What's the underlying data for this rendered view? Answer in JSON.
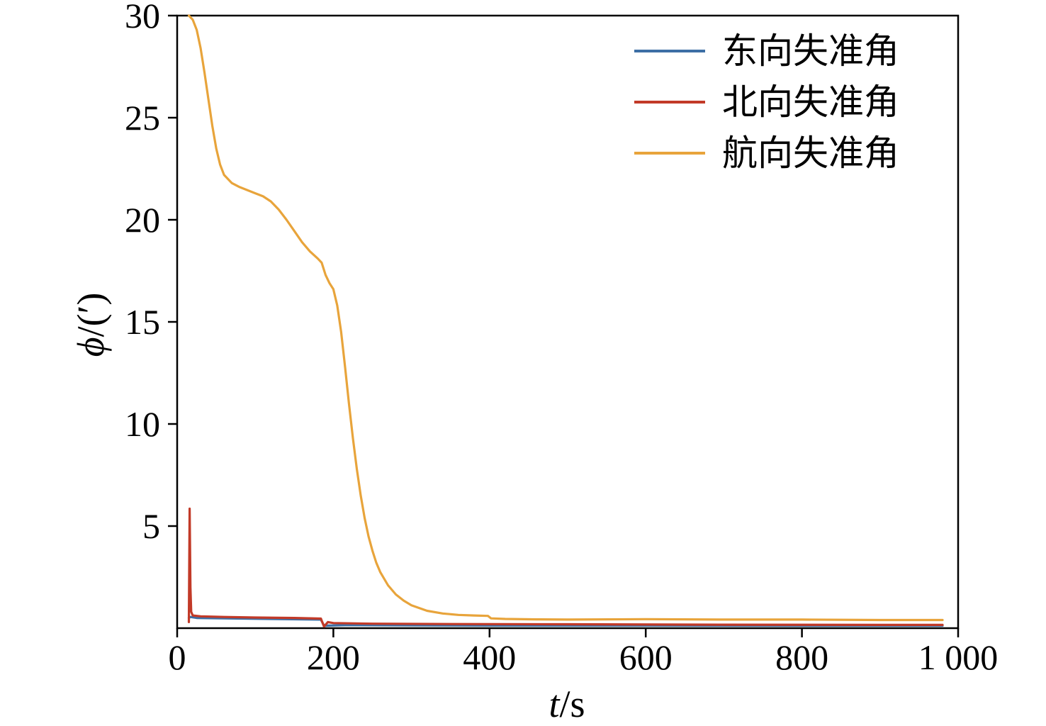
{
  "chart_data": {
    "type": "line",
    "title": "",
    "xlabel_var": "t",
    "xlabel_unit": "/s",
    "ylabel_var": "ϕ",
    "ylabel_unit": "/(′)",
    "xlim": [
      0,
      1000
    ],
    "ylim": [
      0,
      30
    ],
    "grid": false,
    "legend_position": "top-right",
    "x_ticks": {
      "values": [
        0,
        200,
        400,
        600,
        800,
        1000
      ],
      "labels": [
        "0",
        "200",
        "400",
        "600",
        "800",
        "1 000"
      ]
    },
    "y_ticks": {
      "values": [
        5,
        10,
        15,
        20,
        25,
        30
      ],
      "labels": [
        "5",
        "10",
        "15",
        "20",
        "25",
        "30"
      ]
    },
    "axis_color": "#000000",
    "series": [
      {
        "name": "东向失准角",
        "color": "#3d6fa5",
        "points": [
          [
            15,
            0.5
          ],
          [
            17,
            0.55
          ],
          [
            25,
            0.5
          ],
          [
            60,
            0.48
          ],
          [
            120,
            0.45
          ],
          [
            184,
            0.42
          ],
          [
            188,
            0.12
          ],
          [
            220,
            0.15
          ],
          [
            300,
            0.14
          ],
          [
            400,
            0.13
          ],
          [
            600,
            0.13
          ],
          [
            800,
            0.12
          ],
          [
            980,
            0.12
          ]
        ]
      },
      {
        "name": "北向失准角",
        "color": "#c23a28",
        "points": [
          [
            15,
            0.3
          ],
          [
            16,
            5.85
          ],
          [
            17,
            2.0
          ],
          [
            18,
            0.8
          ],
          [
            20,
            0.62
          ],
          [
            30,
            0.58
          ],
          [
            60,
            0.55
          ],
          [
            100,
            0.52
          ],
          [
            150,
            0.5
          ],
          [
            184,
            0.47
          ],
          [
            188,
            0.08
          ],
          [
            193,
            0.3
          ],
          [
            200,
            0.25
          ],
          [
            250,
            0.22
          ],
          [
            350,
            0.2
          ],
          [
            500,
            0.19
          ],
          [
            700,
            0.17
          ],
          [
            900,
            0.16
          ],
          [
            980,
            0.16
          ]
        ]
      },
      {
        "name": "航向失准角",
        "color": "#e8a43b",
        "points": [
          [
            15,
            30
          ],
          [
            20,
            29.8
          ],
          [
            25,
            29.3
          ],
          [
            30,
            28.4
          ],
          [
            35,
            27.2
          ],
          [
            40,
            25.9
          ],
          [
            45,
            24.6
          ],
          [
            50,
            23.5
          ],
          [
            55,
            22.7
          ],
          [
            60,
            22.2
          ],
          [
            70,
            21.8
          ],
          [
            80,
            21.6
          ],
          [
            90,
            21.45
          ],
          [
            100,
            21.3
          ],
          [
            110,
            21.15
          ],
          [
            120,
            20.9
          ],
          [
            130,
            20.5
          ],
          [
            140,
            20.0
          ],
          [
            150,
            19.45
          ],
          [
            160,
            18.9
          ],
          [
            170,
            18.45
          ],
          [
            180,
            18.1
          ],
          [
            185,
            17.9
          ],
          [
            190,
            17.3
          ],
          [
            195,
            16.9
          ],
          [
            200,
            16.6
          ],
          [
            205,
            15.8
          ],
          [
            210,
            14.5
          ],
          [
            215,
            12.8
          ],
          [
            220,
            11.0
          ],
          [
            225,
            9.3
          ],
          [
            230,
            7.8
          ],
          [
            235,
            6.5
          ],
          [
            240,
            5.4
          ],
          [
            245,
            4.5
          ],
          [
            250,
            3.8
          ],
          [
            255,
            3.2
          ],
          [
            260,
            2.75
          ],
          [
            270,
            2.1
          ],
          [
            280,
            1.65
          ],
          [
            290,
            1.35
          ],
          [
            300,
            1.12
          ],
          [
            320,
            0.85
          ],
          [
            340,
            0.72
          ],
          [
            360,
            0.65
          ],
          [
            380,
            0.62
          ],
          [
            398,
            0.6
          ],
          [
            402,
            0.48
          ],
          [
            420,
            0.45
          ],
          [
            460,
            0.43
          ],
          [
            500,
            0.42
          ],
          [
            600,
            0.44
          ],
          [
            700,
            0.42
          ],
          [
            800,
            0.42
          ],
          [
            900,
            0.4
          ],
          [
            980,
            0.4
          ]
        ]
      }
    ]
  }
}
